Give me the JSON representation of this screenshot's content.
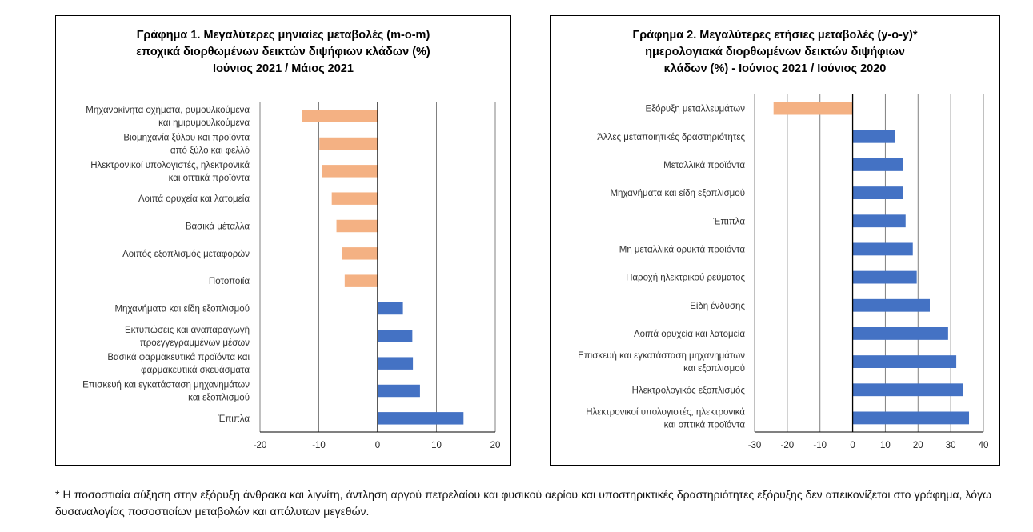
{
  "colors": {
    "negative": "#F4B183",
    "positive": "#4472C4",
    "grid": "#808080",
    "axis": "#000000"
  },
  "chart_data": [
    {
      "type": "bar",
      "orientation": "horizontal",
      "title_lines": [
        "Γράφημα 1. Μεγαλύτερες μηνιαίες μεταβολές (m-o-m)",
        "εποχικά διορθωμένων δεικτών διψήφιων κλάδων (%)",
        "Ιούνιος 2021 / Μάιος 2021"
      ],
      "categories": [
        [
          "Μηχανοκίνητα οχήματα, ρυμουλκούμενα",
          "και ημιρυμουλκούμενα"
        ],
        [
          "Βιομηχανία ξύλου και προϊόντα",
          "από ξύλο και φελλό"
        ],
        [
          "Ηλεκτρονικοί υπολογιστές, ηλεκτρονικά",
          "και οπτικά προϊόντα"
        ],
        [
          "Λοιπά ορυχεία και λατομεία"
        ],
        [
          "Βασικά μέταλλα"
        ],
        [
          "Λοιπός εξοπλισμός μεταφορών"
        ],
        [
          "Ποτοποιία"
        ],
        [
          "Μηχανήματα και είδη εξοπλισμού"
        ],
        [
          "Εκτυπώσεις και αναπαραγωγή",
          "προεγγεγραμμένων μέσων"
        ],
        [
          "Βασικά φαρμακευτικά προϊόντα και",
          "φαρμακευτικά σκευάσματα"
        ],
        [
          "Επισκευή και εγκατάσταση μηχανημάτων",
          "και εξοπλισμού"
        ],
        [
          "Έπιπλα"
        ]
      ],
      "values": [
        -12.9,
        -9.9,
        -9.5,
        -7.8,
        -7.0,
        -6.1,
        -5.6,
        4.3,
        5.9,
        6.0,
        7.2,
        14.6
      ],
      "xlim": [
        -20,
        20
      ],
      "ticks": [
        "-20",
        "-10",
        "0",
        "10",
        "20"
      ],
      "grid": true
    },
    {
      "type": "bar",
      "orientation": "horizontal",
      "title_lines": [
        "Γράφημα 2. Μεγαλύτερες ετήσιες μεταβολές (y-o-y)*",
        "ημερολογιακά διορθωμένων δεικτών διψήφιων",
        "κλάδων (%) - Ιούνιος 2021 / Ιούνιος 2020"
      ],
      "categories": [
        [
          "Εξόρυξη μεταλλευμάτων"
        ],
        [
          "Άλλες μεταποιητικές δραστηριότητες"
        ],
        [
          "Μεταλλικά προϊόντα"
        ],
        [
          "Μηχανήματα και είδη εξοπλισμού"
        ],
        [
          "Έπιπλα"
        ],
        [
          "Μη μεταλλικά ορυκτά προϊόντα"
        ],
        [
          "Παροχή ηλεκτρικού ρεύματος"
        ],
        [
          "Είδη ένδυσης"
        ],
        [
          "Λοιπά ορυχεία και λατομεία"
        ],
        [
          "Επισκευή και εγκατάσταση μηχανημάτων",
          "και εξοπλισμού"
        ],
        [
          "Ηλεκτρολογικός εξοπλισμός"
        ],
        [
          "Ηλεκτρονικοί υπολογιστές, ηλεκτρονικά",
          "και οπτικά προϊόντα"
        ]
      ],
      "values": [
        -24.2,
        13.0,
        15.3,
        15.5,
        16.2,
        18.4,
        19.6,
        23.6,
        29.2,
        31.7,
        33.8,
        35.6
      ],
      "xlim": [
        -30,
        40
      ],
      "ticks": [
        "-30",
        "-20",
        "-10",
        "0",
        "10",
        "20",
        "30",
        "40"
      ],
      "grid": true
    }
  ],
  "footnote": "* Η ποσοστιαία αύξηση στην εξόρυξη άνθρακα και λιγνίτη, άντληση αργού πετρελαίου και φυσικού αερίου και υποστηρικτικές  δραστηριότητες εξόρυξης δεν απεικονίζεται στο γράφημα, λόγω δυσαναλογίας ποσοστιαίων μεταβολών και απόλυτων μεγεθών."
}
